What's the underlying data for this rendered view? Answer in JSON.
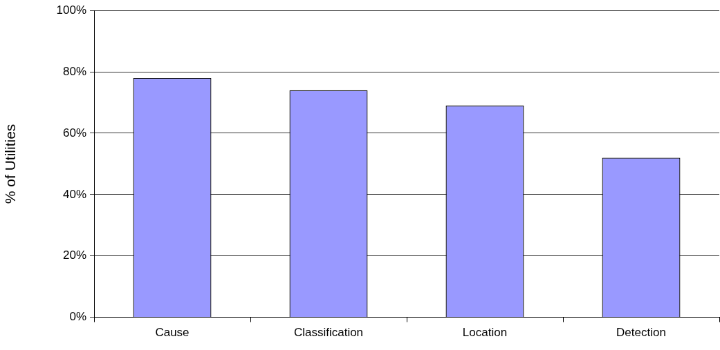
{
  "chart_data": {
    "type": "bar",
    "ylabel": "% of Utilities",
    "categories": [
      "Cause",
      "Classification",
      "Location",
      "Detection"
    ],
    "values": [
      78,
      74,
      69,
      52
    ],
    "color": "#9999ff",
    "ylim": [
      0,
      100
    ],
    "yticks": [
      {
        "value": 0,
        "label": "0%"
      },
      {
        "value": 20,
        "label": "20%"
      },
      {
        "value": 40,
        "label": "40%"
      },
      {
        "value": 60,
        "label": "60%"
      },
      {
        "value": 80,
        "label": "80%"
      },
      {
        "value": 100,
        "label": "100%"
      }
    ],
    "grid": "y",
    "legend": false
  }
}
